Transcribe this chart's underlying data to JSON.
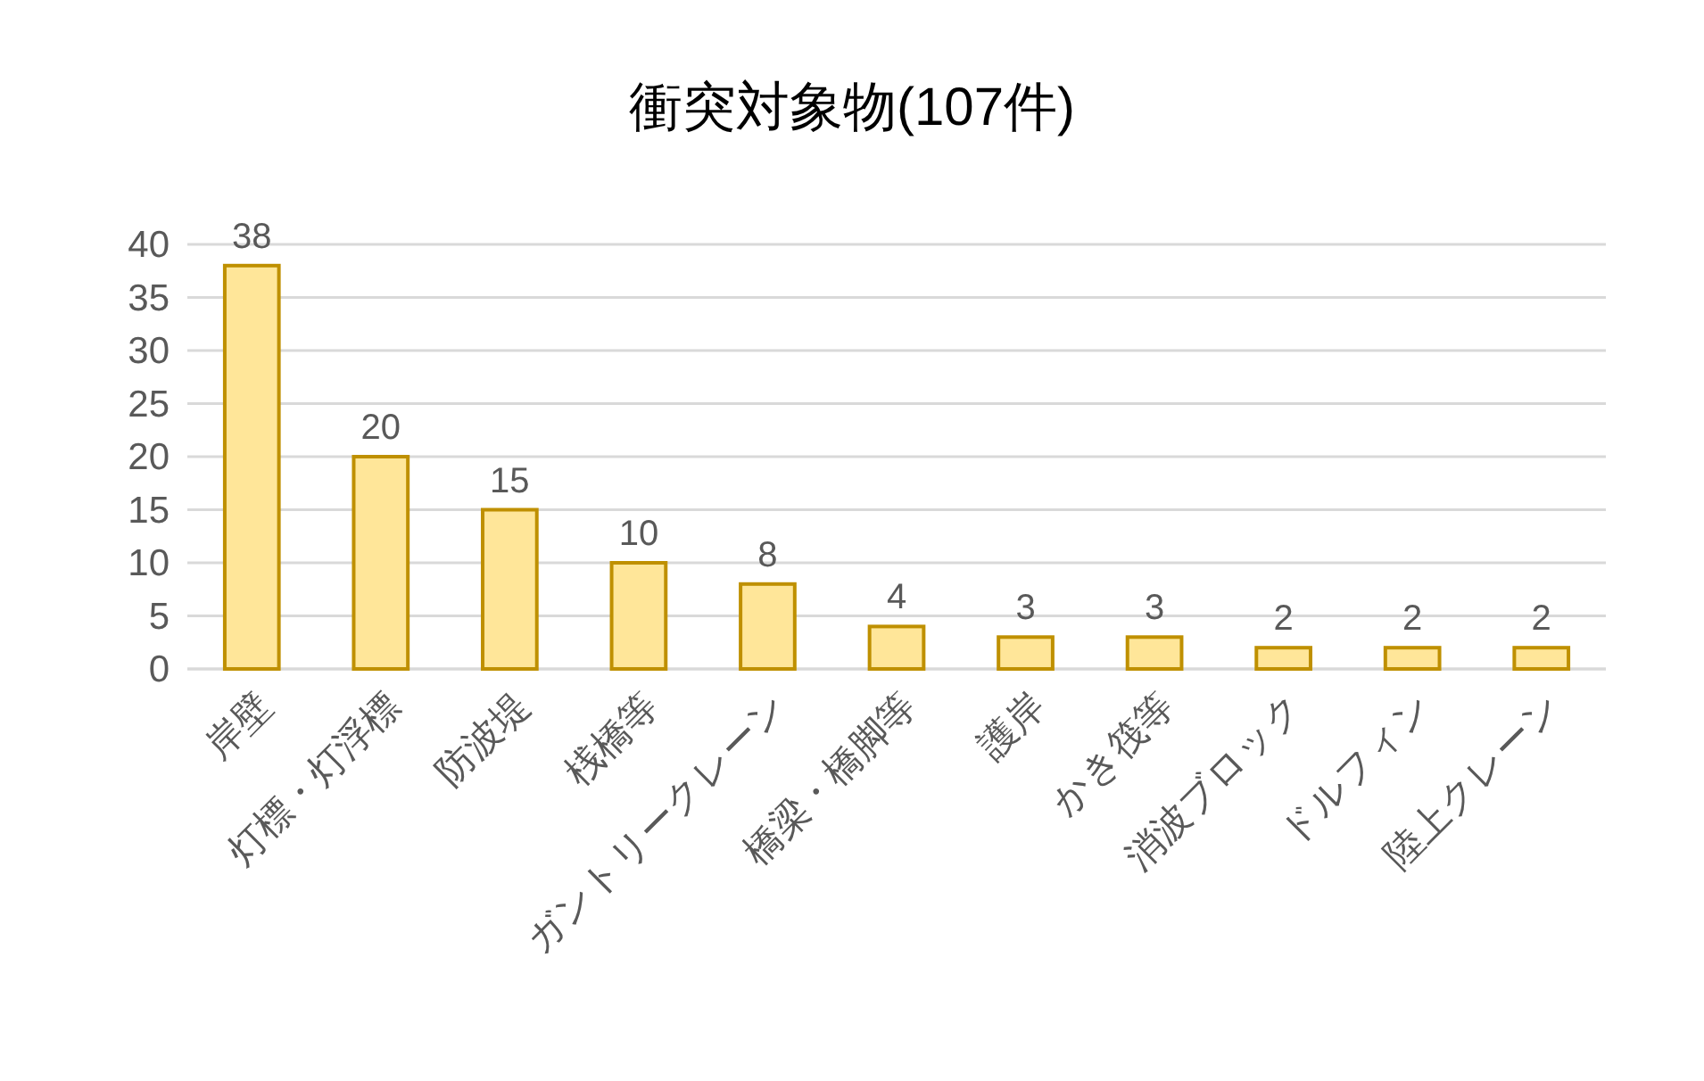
{
  "chart_data": {
    "type": "bar",
    "title": "衝突対象物(107件)",
    "categories": [
      "岸壁",
      "灯標・灯浮標",
      "防波堤",
      "桟橋等",
      "ガントリークレーン",
      "橋梁・橋脚等",
      "護岸",
      "かき筏等",
      "消波ブロック",
      "ドルフィン",
      "陸上クレーン"
    ],
    "values": [
      38,
      20,
      15,
      10,
      8,
      4,
      3,
      3,
      2,
      2,
      2
    ],
    "color": "#ffe699",
    "ylim": [
      0,
      40
    ],
    "yticks": [
      0,
      5,
      10,
      15,
      20,
      25,
      30,
      35,
      40
    ],
    "grid": "y",
    "data_labels": true
  }
}
